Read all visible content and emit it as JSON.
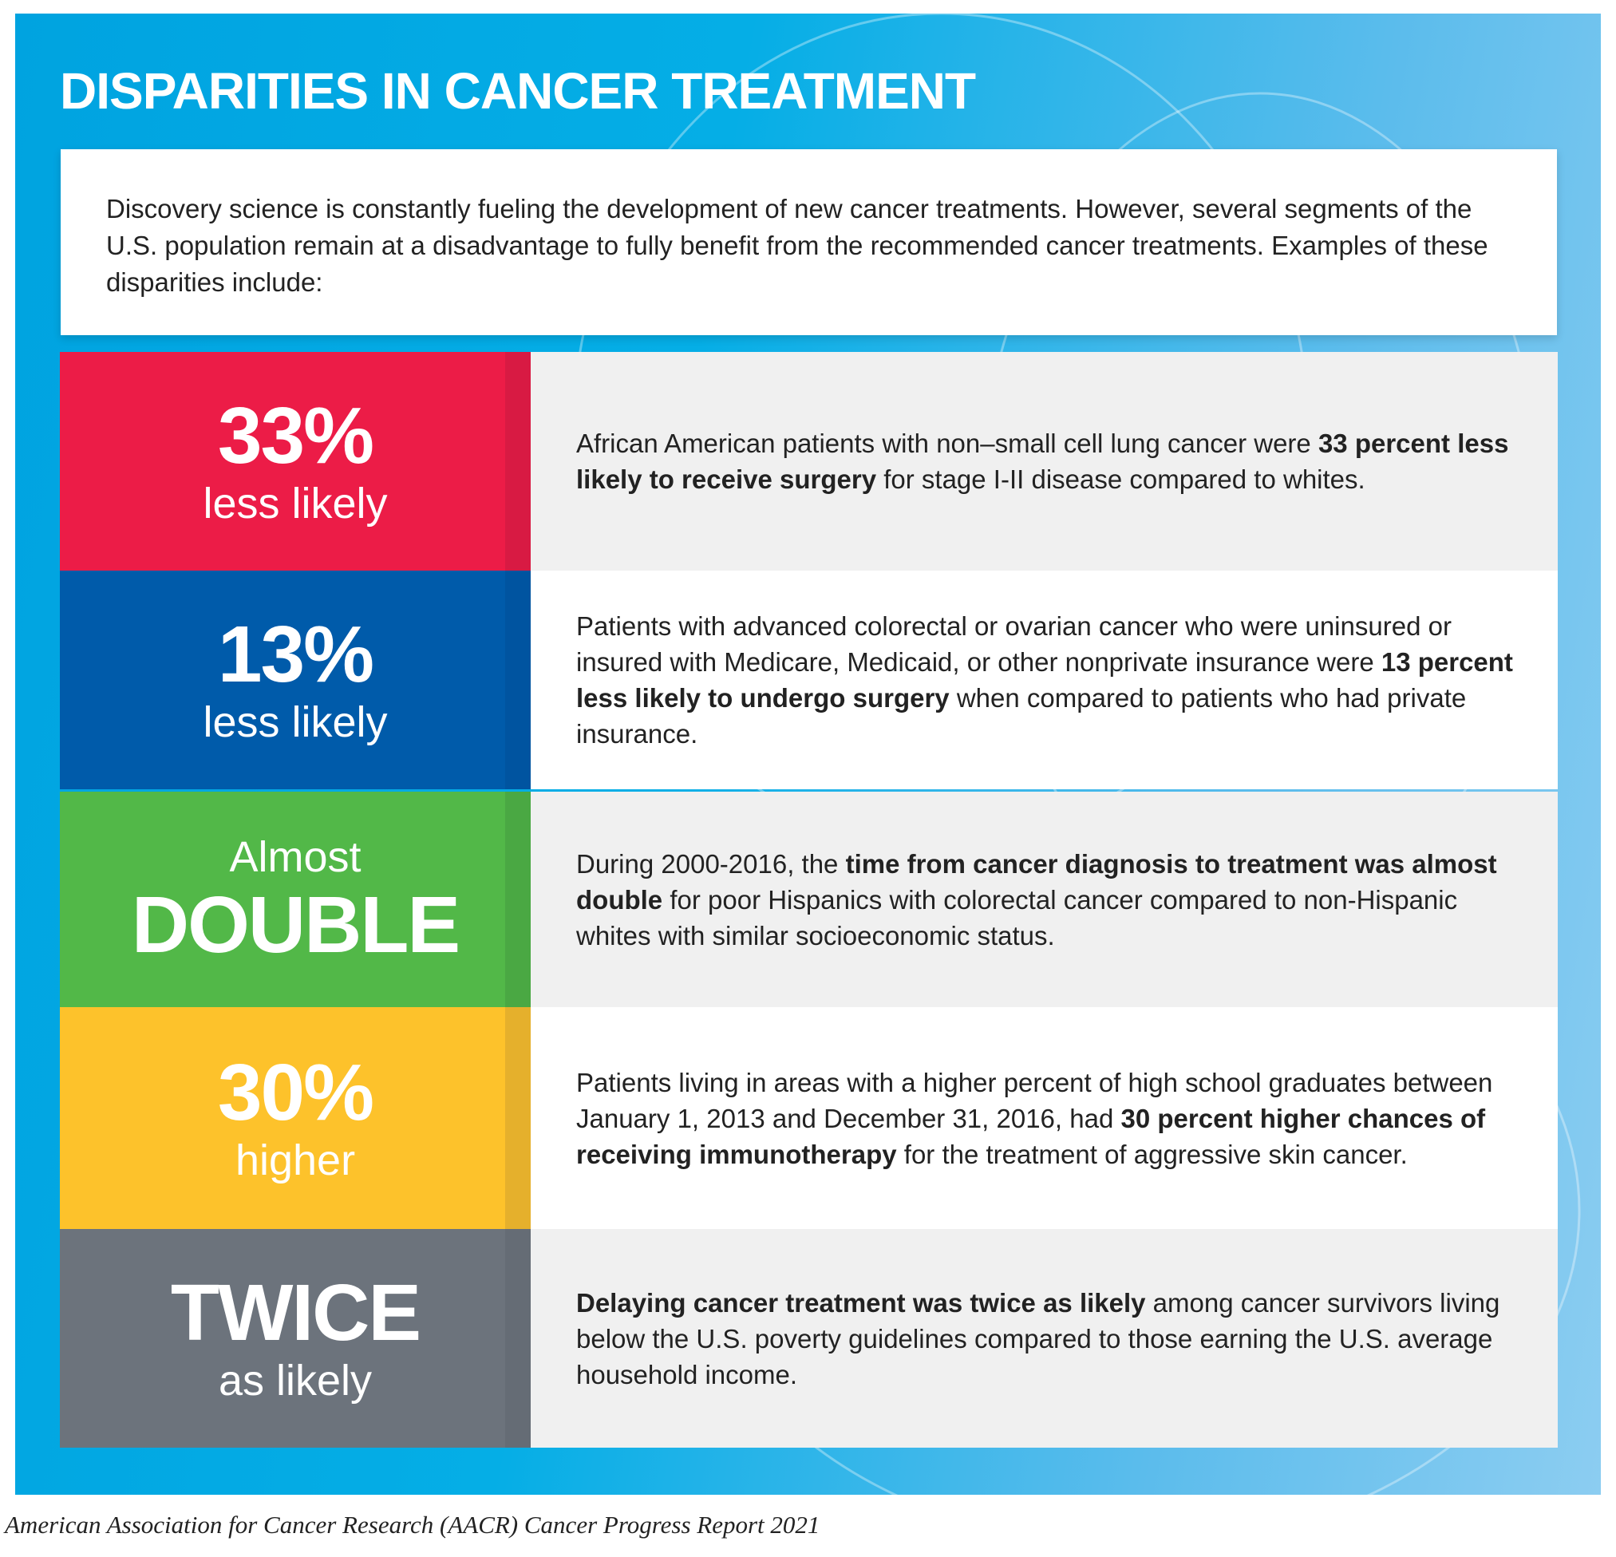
{
  "title": "DISPARITIES IN CANCER TREATMENT",
  "intro": "Discovery science is constantly fueling the development of new cancer treatments. However, several segments of the U.S. population remain at a disadvantage to fully benefit from the recommended cancer treatments. Examples of these disparities include:",
  "rows": [
    {
      "top": "33%",
      "bottom": "less likely",
      "color": "#ec1c47",
      "strip": "#d81a43",
      "bg": "#f0f0f0",
      "pre": "African American patients with non–small cell lung cancer were ",
      "bold": "33 percent less likely to receive surgery",
      "post": " for stage I-II disease compared to whites."
    },
    {
      "top": "13%",
      "bottom": "less likely",
      "color": "#005baa",
      "strip": "#0054a0",
      "bg": "#ffffff",
      "pre": "Patients with advanced colorectal or ovarian cancer who were uninsured or insured with Medicare, Medicaid, or other nonprivate insurance were ",
      "bold": "13 percent less likely to undergo surgery",
      "post": " when compared to patients who had private insurance."
    },
    {
      "top": "Almost",
      "bottom": "DOUBLE",
      "color": "#52b848",
      "strip": "#4aa843",
      "bg": "#f0f0f0",
      "pre": "During 2000-2016, the ",
      "bold": "time from cancer diagnosis to treatment was almost double",
      "post": " for poor Hispanics with colorectal cancer compared to non-Hispanic whites with similar socioeconomic status."
    },
    {
      "top": "30%",
      "bottom": "higher",
      "color": "#fdc22b",
      "strip": "#e5b02c",
      "bg": "#ffffff",
      "pre": "Patients living in areas with a higher percent of high school graduates between January 1, 2013 and December 31, 2016, had ",
      "bold": "30 percent higher chances of receiving immunotherapy",
      "post": " for the treatment of aggressive skin cancer."
    },
    {
      "top": "TWICE",
      "bottom": "as likely",
      "color": "#6c737c",
      "strip": "#656c75",
      "bg": "#f0f0f0",
      "pre": "",
      "bold": "Delaying cancer treatment was twice as likely",
      "post": " among cancer survivors living below the U.S. poverty guidelines compared to those earning the U.S. average household income."
    }
  ],
  "caption": "American Association for Cancer Research (AACR) Cancer Progress Report 2021"
}
